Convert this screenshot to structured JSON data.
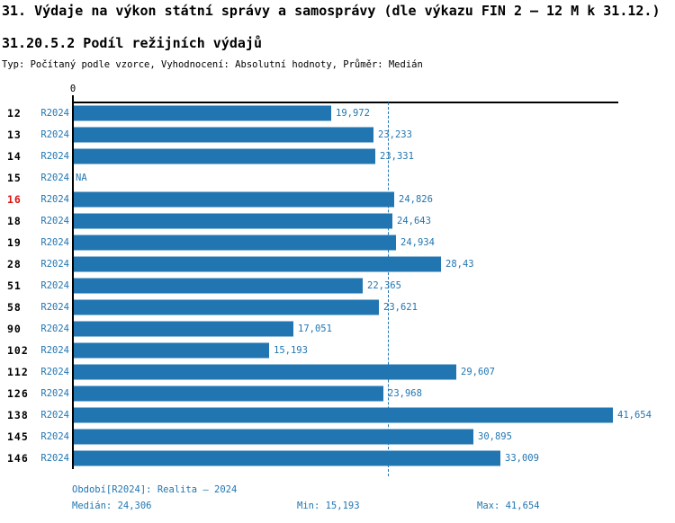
{
  "header": {
    "title": "31. Výdaje na výkon státní správy a samosprávy (dle výkazu FIN 2 – 12 M k 31.12.)",
    "subtitle": "31.20.5.2 Podíl režijních výdajů",
    "meta": "Typ: Počítaný podle vzorce, Vyhodnocení: Absolutní hodnoty, Průměr: Medián"
  },
  "chart_data": {
    "type": "bar",
    "orientation": "horizontal",
    "title": "31.20.5.2 Podíl režijních výdajů",
    "series_label": "R2024",
    "xlim": [
      0,
      42
    ],
    "axis_zero_label": "0",
    "median": 24.306,
    "min": 15.193,
    "max": 41.654,
    "na_label": "NA",
    "grid": false,
    "legend": "none",
    "colors": {
      "bar": "#2176b2",
      "label_text": "#2176b2",
      "highlight_row_id": "#dd1111",
      "axis": "#000000"
    },
    "rows": [
      {
        "id": "12",
        "label": "19,972",
        "value": 19.972,
        "highlight": false
      },
      {
        "id": "13",
        "label": "23,233",
        "value": 23.233,
        "highlight": false
      },
      {
        "id": "14",
        "label": "23,331",
        "value": 23.331,
        "highlight": false
      },
      {
        "id": "15",
        "label": "NA",
        "value": null,
        "highlight": false
      },
      {
        "id": "16",
        "label": "24,826",
        "value": 24.826,
        "highlight": true
      },
      {
        "id": "18",
        "label": "24,643",
        "value": 24.643,
        "highlight": false
      },
      {
        "id": "19",
        "label": "24,934",
        "value": 24.934,
        "highlight": false
      },
      {
        "id": "28",
        "label": "28,43",
        "value": 28.43,
        "highlight": false
      },
      {
        "id": "51",
        "label": "22,365",
        "value": 22.365,
        "highlight": false
      },
      {
        "id": "58",
        "label": "23,621",
        "value": 23.621,
        "highlight": false
      },
      {
        "id": "90",
        "label": "17,051",
        "value": 17.051,
        "highlight": false
      },
      {
        "id": "102",
        "label": "15,193",
        "value": 15.193,
        "highlight": false
      },
      {
        "id": "112",
        "label": "29,607",
        "value": 29.607,
        "highlight": false
      },
      {
        "id": "126",
        "label": "23,968",
        "value": 23.968,
        "highlight": false
      },
      {
        "id": "138",
        "label": "41,654",
        "value": 41.654,
        "highlight": false
      },
      {
        "id": "145",
        "label": "30,895",
        "value": 30.895,
        "highlight": false
      },
      {
        "id": "146",
        "label": "33,009",
        "value": 33.009,
        "highlight": false
      }
    ]
  },
  "footer": {
    "period": "Období[R2024]: Realita – 2024",
    "median": "Medián: 24,306",
    "min": "Min: 15,193",
    "max": "Max: 41,654"
  }
}
